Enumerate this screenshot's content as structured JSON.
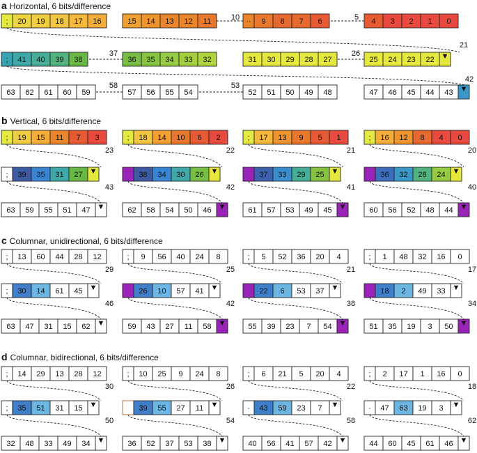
{
  "colors": {
    "c0": "#e84a3f",
    "c1": "#e65a34",
    "c2": "#e6692f",
    "c3": "#e9782c",
    "c4": "#eb852b",
    "c5": "#ef932c",
    "c6": "#f19f32",
    "c7": "#f4ad38",
    "c8": "#f4b93c",
    "c9": "#f3c43f",
    "c10": "#f0cd40",
    "c11": "#eed540",
    "c12": "#ebde3e",
    "c13": "#e9e43e",
    "c14": "#e6e83f",
    "c15": "#e3e93f",
    "c16": "#e4e83c",
    "c17": "#e6e737",
    "c18": "#dce537",
    "c19": "#d3e238",
    "c20": "#c8de38",
    "c21": "#bcd93a",
    "c22": "#b0d43c",
    "c23": "#a3cf3e",
    "c24": "#96ca40",
    "c25": "#86c341",
    "c26": "#78bd44",
    "c27": "#69b845",
    "c28": "#52b37e",
    "c29": "#47ad96",
    "c30": "#3ea9a8",
    "c31": "#36a3b4",
    "c32": "#3a98c8",
    "c33": "#3a8ed0",
    "c34": "#3a84d4",
    "c35": "#3c78c8",
    "c36": "#3d6dbb",
    "c37": "#3c62ad",
    "c38": "#3d5aa5",
    "c39": "#3a5fae",
    "c40": "#3c78c4",
    "c41": "#3c8fd0",
    "magenta": "#9a23b8",
    "light_blue": "#6cb6e4",
    "mid_blue": "#3f7fc9",
    "outline": "#222222",
    "brown_outline": "#b06030"
  },
  "panels": [
    {
      "letter": "a",
      "title": "Horizontal, 6 bits/difference"
    },
    {
      "letter": "b",
      "title": "Vertical, 6 bits/difference"
    },
    {
      "letter": "c",
      "title": "Columnar, unidirectional, 6 bits/difference"
    },
    {
      "letter": "d",
      "title": "Columnar, bidirectional, 6 bits/difference"
    }
  ],
  "glyphs": {
    "semicolon": ";",
    "dot": "·",
    "dots": "··",
    "lt": "<",
    "arrow_down": "▼"
  },
  "blocks": {
    "a": [
      {
        "row": 0,
        "col": 0,
        "cells": [
          ";",
          "20",
          "19",
          "18",
          "17",
          "16"
        ],
        "fills": [
          "c15",
          "c11",
          "c10",
          "c9",
          "c8",
          "c7"
        ]
      },
      {
        "row": 0,
        "col": 1,
        "cells": [
          "15",
          "14",
          "13",
          "12",
          "11"
        ],
        "fills": [
          "c6",
          "c5",
          "c4",
          "c4",
          "c3"
        ]
      },
      {
        "row": 0,
        "col": 2,
        "cells": [
          "··",
          "9",
          "8",
          "7",
          "6"
        ],
        "fills": [
          "c4",
          "c3",
          "c2",
          "c2",
          "c1"
        ]
      },
      {
        "row": 0,
        "col": 3,
        "cells": [
          "4",
          "3",
          "2",
          "1",
          "0"
        ],
        "fills": [
          "c1",
          "c0",
          "c0",
          "c0",
          "c0"
        ]
      },
      {
        "row": 1,
        "col": 0,
        "cells": [
          ";",
          "41",
          "40",
          "39",
          "38"
        ],
        "fills": [
          "c31",
          "c30",
          "c29",
          "c28",
          "c27"
        ]
      },
      {
        "row": 1,
        "col": 1,
        "cells": [
          "36",
          "35",
          "34",
          "33",
          "32"
        ],
        "fills": [
          "c26",
          "c25",
          "c24",
          "c23",
          "c22"
        ]
      },
      {
        "row": 1,
        "col": 2,
        "cells": [
          "31",
          "30",
          "29",
          "28",
          "27"
        ],
        "fills": [
          "c16",
          "c16",
          "c16",
          "c16",
          "c16"
        ]
      },
      {
        "row": 1,
        "col": 3,
        "cells": [
          "25",
          "24",
          "23",
          "22",
          "▼"
        ],
        "fills": [
          "c16",
          "c16",
          "c16",
          "c16",
          "c16"
        ]
      },
      {
        "row": 2,
        "col": 0,
        "cells": [
          "63",
          "62",
          "61",
          "60",
          "59"
        ],
        "fills": []
      },
      {
        "row": 2,
        "col": 1,
        "cells": [
          "57",
          "56",
          "55",
          "54"
        ],
        "fills": []
      },
      {
        "row": 2,
        "col": 2,
        "cells": [
          "52",
          "51",
          "50",
          "49",
          "48"
        ],
        "fills": []
      },
      {
        "row": 2,
        "col": 3,
        "cells": [
          "47",
          "46",
          "45",
          "44",
          "43",
          "▼"
        ],
        "fills": [
          "",
          "",
          "",
          "",
          "",
          "c32"
        ]
      }
    ],
    "b": [
      {
        "row": 0,
        "col": 0,
        "cells": [
          ";",
          "19",
          "15",
          "11",
          "7",
          "3"
        ],
        "fills": [
          "c15",
          "c10",
          "c7",
          "c4",
          "c1",
          "c0"
        ]
      },
      {
        "row": 0,
        "col": 1,
        "cells": [
          ";",
          "18",
          "14",
          "10",
          "6",
          "2"
        ],
        "fills": [
          "c15",
          "c9",
          "c6",
          "c3",
          "c1",
          "c0"
        ]
      },
      {
        "row": 0,
        "col": 2,
        "cells": [
          ";",
          "17",
          "13",
          "9",
          "5",
          "1"
        ],
        "fills": [
          "c15",
          "c8",
          "c5",
          "c3",
          "c1",
          "c0"
        ]
      },
      {
        "row": 0,
        "col": 3,
        "cells": [
          ";",
          "16",
          "12",
          "8",
          "4",
          "0"
        ],
        "fills": [
          "c15",
          "c7",
          "c5",
          "c2",
          "c0",
          "c0"
        ]
      },
      {
        "row": 1,
        "col": 0,
        "cells": [
          ";",
          "39",
          "35",
          "31",
          "27",
          "▼"
        ],
        "fills": [
          "",
          "c38",
          "c34",
          "c30",
          "c27",
          "c16"
        ]
      },
      {
        "row": 1,
        "col": 1,
        "cells": [
          "",
          "38",
          "34",
          "30",
          "26",
          "▼"
        ],
        "fills": [
          "magenta",
          "c38",
          "c34",
          "c30",
          "c26",
          "c16"
        ]
      },
      {
        "row": 1,
        "col": 2,
        "cells": [
          "",
          "37",
          "33",
          "29",
          "25",
          "▼"
        ],
        "fills": [
          "magenta",
          "c37",
          "c33",
          "c29",
          "c25",
          "c16"
        ]
      },
      {
        "row": 1,
        "col": 3,
        "cells": [
          "",
          "36",
          "32",
          "28",
          "24",
          "▼"
        ],
        "fills": [
          "magenta",
          "c36",
          "c32",
          "c28",
          "c24",
          "c16"
        ]
      },
      {
        "row": 2,
        "col": 0,
        "cells": [
          "63",
          "59",
          "55",
          "51",
          "47",
          "▼"
        ],
        "fills": []
      },
      {
        "row": 2,
        "col": 1,
        "cells": [
          "62",
          "58",
          "54",
          "50",
          "46",
          "▼"
        ],
        "fills": [
          "",
          "",
          "",
          "",
          "",
          "magenta"
        ]
      },
      {
        "row": 2,
        "col": 2,
        "cells": [
          "61",
          "57",
          "53",
          "49",
          "45",
          "▼"
        ],
        "fills": [
          "",
          "",
          "",
          "",
          "",
          "magenta"
        ]
      },
      {
        "row": 2,
        "col": 3,
        "cells": [
          "60",
          "56",
          "52",
          "48",
          "44",
          "▼"
        ],
        "fills": [
          "",
          "",
          "",
          "",
          "",
          "magenta"
        ]
      }
    ],
    "c": [
      {
        "row": 0,
        "col": 0,
        "cells": [
          ";",
          "13",
          "60",
          "44",
          "28",
          "12"
        ],
        "fills": []
      },
      {
        "row": 0,
        "col": 1,
        "cells": [
          ";",
          "9",
          "56",
          "40",
          "24",
          "8"
        ],
        "fills": []
      },
      {
        "row": 0,
        "col": 2,
        "cells": [
          ";",
          "5",
          "52",
          "36",
          "20",
          "4"
        ],
        "fills": []
      },
      {
        "row": 0,
        "col": 3,
        "cells": [
          ";",
          "1",
          "48",
          "32",
          "16",
          "0"
        ],
        "fills": []
      },
      {
        "row": 1,
        "col": 0,
        "cells": [
          ";",
          "30",
          "14",
          "61",
          "45",
          "▼"
        ],
        "fills": [
          "",
          "mid_blue",
          "light_blue",
          "",
          "",
          ""
        ]
      },
      {
        "row": 1,
        "col": 1,
        "cells": [
          "",
          "26",
          "10",
          "57",
          "41",
          "▼"
        ],
        "fills": [
          "magenta",
          "mid_blue",
          "light_blue",
          "",
          "",
          ""
        ]
      },
      {
        "row": 1,
        "col": 2,
        "cells": [
          "",
          "22",
          "6",
          "53",
          "37",
          "▼"
        ],
        "fills": [
          "magenta",
          "mid_blue",
          "light_blue",
          "",
          "",
          ""
        ]
      },
      {
        "row": 1,
        "col": 3,
        "cells": [
          "",
          "18",
          "2",
          "49",
          "33",
          "▼"
        ],
        "fills": [
          "magenta",
          "mid_blue",
          "light_blue",
          "",
          "",
          ""
        ]
      },
      {
        "row": 2,
        "col": 0,
        "cells": [
          "63",
          "47",
          "31",
          "15",
          "62",
          "▼"
        ],
        "fills": []
      },
      {
        "row": 2,
        "col": 1,
        "cells": [
          "59",
          "43",
          "27",
          "11",
          "58",
          "▼"
        ],
        "fills": [
          "",
          "",
          "",
          "",
          "",
          "magenta"
        ]
      },
      {
        "row": 2,
        "col": 2,
        "cells": [
          "55",
          "39",
          "23",
          "7",
          "54",
          "▼"
        ],
        "fills": [
          "",
          "",
          "",
          "",
          "",
          "magenta"
        ]
      },
      {
        "row": 2,
        "col": 3,
        "cells": [
          "51",
          "35",
          "19",
          "3",
          "50",
          "▼"
        ],
        "fills": [
          "",
          "",
          "",
          "",
          "",
          "magenta"
        ]
      }
    ],
    "d": [
      {
        "row": 0,
        "col": 0,
        "cells": [
          ";",
          "14",
          "29",
          "13",
          "28",
          "12"
        ],
        "fills": []
      },
      {
        "row": 0,
        "col": 1,
        "cells": [
          ";",
          "10",
          "25",
          "9",
          "24",
          "8"
        ],
        "fills": []
      },
      {
        "row": 0,
        "col": 2,
        "cells": [
          ";",
          "6",
          "21",
          "5",
          "20",
          "4"
        ],
        "fills": []
      },
      {
        "row": 0,
        "col": 3,
        "cells": [
          ";",
          "2",
          "17",
          "1",
          "16",
          "0"
        ],
        "fills": []
      },
      {
        "row": 1,
        "col": 0,
        "cells": [
          ";",
          "35",
          "51",
          "31",
          "15",
          "▼"
        ],
        "fills": [
          "",
          "mid_blue",
          "light_blue",
          "",
          "",
          ""
        ]
      },
      {
        "row": 1,
        "col": 1,
        "cells": [
          "",
          "39",
          "55",
          "27",
          "11",
          "▼"
        ],
        "fills": [
          "",
          "mid_blue",
          "light_blue",
          "",
          "",
          ""
        ],
        "brown_first": true
      },
      {
        "row": 1,
        "col": 2,
        "cells": [
          "·",
          "43",
          "59",
          "23",
          "7",
          "▼"
        ],
        "fills": [
          "",
          "mid_blue",
          "light_blue",
          "",
          "",
          ""
        ]
      },
      {
        "row": 1,
        "col": 3,
        "cells": [
          "·",
          "47",
          "63",
          "19",
          "3",
          "▼"
        ],
        "fills": [
          "",
          "",
          "light_blue",
          "",
          "",
          ""
        ]
      },
      {
        "row": 2,
        "col": 0,
        "cells": [
          "32",
          "48",
          "33",
          "49",
          "34",
          "▼"
        ],
        "fills": []
      },
      {
        "row": 2,
        "col": 1,
        "cells": [
          "36",
          "52",
          "37",
          "53",
          "38",
          "▼"
        ],
        "fills": []
      },
      {
        "row": 2,
        "col": 2,
        "cells": [
          "40",
          "56",
          "41",
          "57",
          "42",
          "▼"
        ],
        "fills": []
      },
      {
        "row": 2,
        "col": 3,
        "cells": [
          "44",
          "60",
          "45",
          "61",
          "46",
          "▼"
        ],
        "fills": []
      }
    ]
  },
  "labels": {
    "a": [
      "10",
      "5",
      "21",
      "37",
      "26",
      "42",
      "58",
      "53"
    ],
    "b": [
      "23",
      "22",
      "21",
      "20",
      "43",
      "42",
      "41",
      "40"
    ],
    "c": [
      "29",
      "25",
      "21",
      "17",
      "46",
      "42",
      "38",
      "34"
    ],
    "d": [
      "30",
      "26",
      "22",
      "18",
      "50",
      "54",
      "58",
      "62"
    ]
  }
}
